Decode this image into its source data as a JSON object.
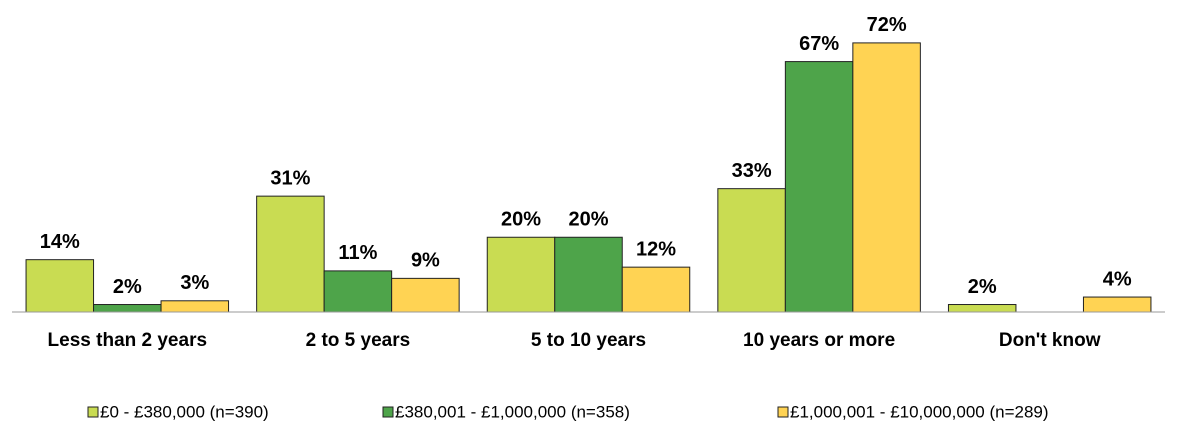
{
  "chart_data": {
    "type": "bar",
    "categories": [
      "Less than 2 years",
      "2 to 5 years",
      "5 to 10 years",
      "10 years or more",
      "Don't know"
    ],
    "series": [
      {
        "name": "£0 - £380,000 (n=390)",
        "color": "#c9dc52",
        "values": [
          14,
          31,
          20,
          33,
          2
        ],
        "value_labels": [
          "14%",
          "31%",
          "20%",
          "33%",
          "2%"
        ]
      },
      {
        "name": "£380,001 - £1,000,000 (n=358)",
        "color": "#4ea44a",
        "values": [
          2,
          11,
          20,
          67,
          null
        ],
        "value_labels": [
          "2%",
          "11%",
          "20%",
          "67%",
          null
        ]
      },
      {
        "name": "£1,000,001 - £10,000,000 (n=289)",
        "color": "#ffd353",
        "values": [
          3,
          9,
          12,
          72,
          4
        ],
        "value_labels": [
          "3%",
          "9%",
          "12%",
          "72%",
          "4%"
        ]
      }
    ],
    "ylim": [
      0,
      80
    ],
    "legend": "bottom"
  }
}
